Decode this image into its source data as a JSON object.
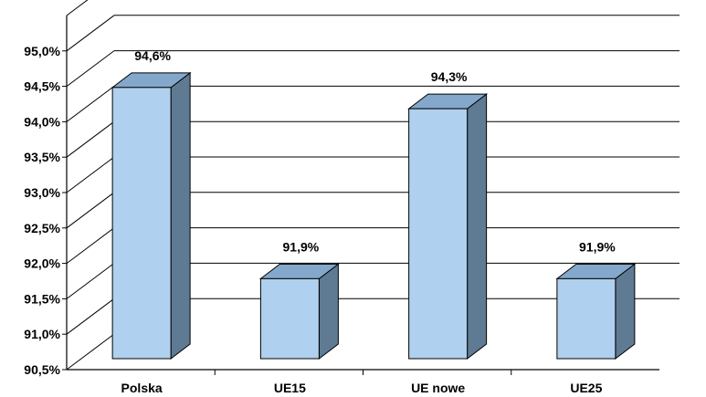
{
  "chart_data": {
    "type": "bar",
    "style": "3d-column",
    "categories": [
      "Polska",
      "UE15",
      "UE nowe",
      "UE25"
    ],
    "values": [
      94.6,
      91.9,
      94.3,
      91.9
    ],
    "data_labels": [
      "94,6%",
      "91,9%",
      "94,3%",
      "91,9%"
    ],
    "yticks": [
      90.5,
      91.0,
      91.5,
      92.0,
      92.5,
      93.0,
      93.5,
      94.0,
      94.5,
      95.0
    ],
    "ytick_labels": [
      "90,5%",
      "91,0%",
      "91,5%",
      "92,0%",
      "92,5%",
      "93,0%",
      "93,5%",
      "94,0%",
      "94,5%",
      "95,0%"
    ],
    "ylim": [
      90.5,
      95.5
    ],
    "grid": true,
    "legend": "none",
    "title": "",
    "xlabel": "",
    "ylabel": "",
    "colors": {
      "bar_front": "#AFD0EE",
      "bar_side": "#5F7A93",
      "bar_top": "#84A8CC",
      "outline": "#000000",
      "grid": "#000000"
    }
  }
}
